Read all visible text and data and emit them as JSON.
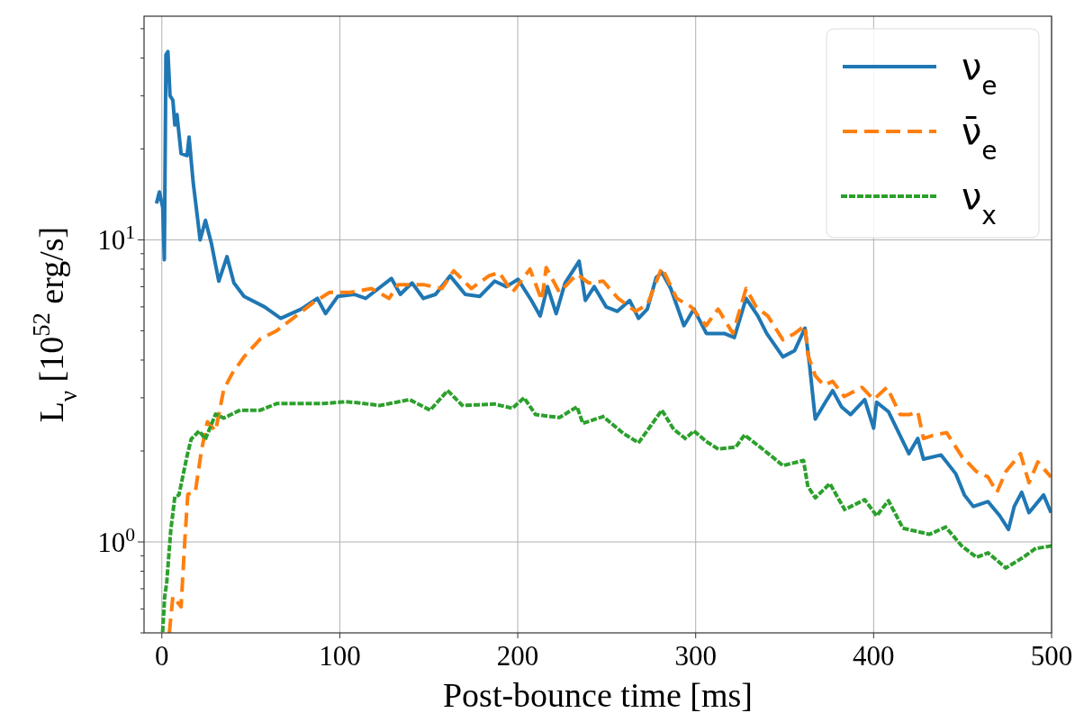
{
  "chart_data": {
    "type": "line",
    "xlabel": "Post-bounce time [ms]",
    "ylabel": "L$_{ν}$ [10$^{52}$ erg/s]",
    "xlim": [
      -10,
      500
    ],
    "ylim": [
      0.5,
      55
    ],
    "log": "y",
    "grid": true,
    "legend": "top right",
    "xticks": [
      0,
      100,
      200,
      300,
      400,
      500
    ],
    "yticks": [
      {
        "value": 0.5,
        "label": null
      },
      {
        "value": 0.6,
        "label": null
      },
      {
        "value": 0.7,
        "label": null
      },
      {
        "value": 0.8,
        "label": null
      },
      {
        "value": 0.9,
        "label": null
      },
      {
        "value": 1,
        "label": "10$^{0}$"
      },
      {
        "value": 2,
        "label": null
      },
      {
        "value": 3,
        "label": null
      },
      {
        "value": 4,
        "label": null
      },
      {
        "value": 5,
        "label": null
      },
      {
        "value": 6,
        "label": null
      },
      {
        "value": 7,
        "label": null
      },
      {
        "value": 8,
        "label": null
      },
      {
        "value": 9,
        "label": null
      },
      {
        "value": 10,
        "label": "10$^{1}$"
      },
      {
        "value": 20,
        "label": null
      },
      {
        "value": 30,
        "label": null
      },
      {
        "value": 40,
        "label": null
      },
      {
        "value": 50,
        "label": null
      }
    ],
    "series": [
      {
        "name": "ν$_{e}$",
        "color": "#1f77b4",
        "line_style": "solid",
        "x": [
          -3,
          -1.4,
          0.5,
          1.4,
          2.3,
          3.4,
          4.6,
          6.2,
          7.3,
          8.5,
          10.8,
          14.2,
          15.3,
          17.6,
          19.9,
          21.5,
          24.5,
          27.9,
          32,
          36.6,
          40.5,
          46.2,
          57.7,
          66.8,
          78.3,
          87.4,
          92,
          98.9,
          108,
          114.5,
          129,
          134,
          140.6,
          147,
          153.8,
          162,
          170.5,
          178.7,
          187,
          193.6,
          200.2,
          207.7,
          212.6,
          216.7,
          221.6,
          226.6,
          234.5,
          238,
          243,
          249.7,
          256,
          262.9,
          267.9,
          272.8,
          277.8,
          281,
          286,
          293.4,
          299,
          306,
          316,
          321.7,
          328.3,
          334.9,
          339.9,
          349,
          355.6,
          361.4,
          363.9,
          367.2,
          373.8,
          377,
          382,
          387,
          395,
          400,
          401.7,
          408.3,
          419.8,
          424.8,
          428,
          437.9,
          446.2,
          451,
          456,
          464.3,
          470.9,
          475.8,
          479,
          483.2,
          487.3,
          495.5,
          499.7
        ],
        "values": [
          13.2,
          14.4,
          12.8,
          8.6,
          41,
          42,
          30,
          29,
          24,
          26,
          19.3,
          19,
          21.9,
          15.5,
          12,
          10,
          11.6,
          9.7,
          7.3,
          8.8,
          7.2,
          6.5,
          6.0,
          5.5,
          5.9,
          6.4,
          5.7,
          6.5,
          6.6,
          6.4,
          7.45,
          6.6,
          7.2,
          6.4,
          6.6,
          7.6,
          6.6,
          6.5,
          7.3,
          7.0,
          7.4,
          6.3,
          5.6,
          7.0,
          5.7,
          7.2,
          8.5,
          6.3,
          7.0,
          6.0,
          5.8,
          6.3,
          5.5,
          5.9,
          7.5,
          7.8,
          6.9,
          5.2,
          5.9,
          4.9,
          4.9,
          4.75,
          6.4,
          5.6,
          4.9,
          4.1,
          4.3,
          5.1,
          3.9,
          2.55,
          2.96,
          3.17,
          2.8,
          2.64,
          2.96,
          2.38,
          2.9,
          2.7,
          1.96,
          2.2,
          1.88,
          1.94,
          1.68,
          1.43,
          1.31,
          1.36,
          1.22,
          1.1,
          1.31,
          1.46,
          1.25,
          1.43,
          1.25
        ]
      },
      {
        "name": "ν̄$_{e}$",
        "color": "#ff7f0e",
        "line_style": "dashed",
        "x": [
          4.2,
          6.2,
          10.8,
          13,
          14.6,
          18.8,
          22.2,
          25.6,
          30.2,
          34.8,
          39.4,
          46.2,
          55.4,
          64.5,
          73.7,
          85.1,
          94.3,
          105.7,
          117.8,
          127.7,
          132.7,
          147.5,
          157.4,
          164,
          173.9,
          183.8,
          189.6,
          197,
          206.9,
          213.5,
          216,
          223.4,
          233.3,
          239.9,
          248,
          256.4,
          266.2,
          272.8,
          281,
          289.3,
          297.5,
          305.8,
          312.6,
          320.9,
          328.3,
          334,
          340.5,
          349,
          355.6,
          361.4,
          363,
          367.2,
          372,
          377,
          383.5,
          393.4,
          400,
          407.5,
          414.9,
          420,
          424.8,
          428,
          433,
          441,
          449.5,
          457.8,
          464.3,
          469.3,
          474.3,
          482.5,
          487.3,
          492.3,
          499.7
        ],
        "values": [
          0.5,
          0.66,
          0.61,
          1.03,
          1.44,
          1.46,
          2.0,
          2.5,
          2.33,
          3.2,
          3.6,
          4.1,
          4.7,
          5.0,
          5.5,
          6.2,
          6.7,
          6.7,
          6.9,
          6.4,
          7.1,
          7.1,
          6.9,
          7.9,
          6.9,
          7.6,
          7.8,
          6.7,
          8.0,
          6.3,
          8.1,
          6.7,
          7.7,
          7.2,
          7.3,
          6.4,
          5.8,
          6.1,
          8.1,
          6.4,
          6.0,
          5.2,
          5.9,
          4.9,
          6.9,
          6.0,
          5.6,
          4.67,
          4.9,
          5.2,
          4.17,
          3.55,
          3.3,
          3.4,
          3.03,
          3.25,
          2.96,
          3.25,
          2.64,
          2.64,
          2.7,
          2.2,
          2.25,
          2.3,
          1.92,
          1.71,
          1.64,
          1.46,
          1.71,
          1.96,
          1.57,
          1.84,
          1.64
        ]
      },
      {
        "name": "ν$_{x}$",
        "color": "#2ca02c",
        "line_style": "dotted",
        "x": [
          0.5,
          1.6,
          2.7,
          5,
          7.3,
          9.6,
          14.2,
          16.5,
          21,
          24.5,
          30.2,
          34.8,
          43.9,
          55.4,
          64.5,
          76,
          89.7,
          103.4,
          109.5,
          122.7,
          139.2,
          150.8,
          160.6,
          168.9,
          187,
          197,
          203.6,
          210,
          223.4,
          233.3,
          236.6,
          248,
          259.7,
          267.9,
          281,
          287.6,
          294.2,
          299,
          306,
          312.6,
          322.5,
          327.4,
          339,
          349,
          360.6,
          363,
          367.2,
          375.4,
          383.7,
          395,
          401.7,
          408.3,
          416.5,
          431.4,
          440.5,
          449.5,
          457.8,
          464.3,
          474.3,
          484.2,
          490.8,
          499.7
        ],
        "values": [
          0.51,
          0.66,
          0.73,
          1.09,
          1.41,
          1.43,
          1.93,
          2.19,
          2.33,
          2.19,
          2.65,
          2.57,
          2.73,
          2.73,
          2.87,
          2.87,
          2.87,
          2.91,
          2.89,
          2.83,
          2.96,
          2.73,
          3.17,
          2.83,
          2.86,
          2.77,
          3.0,
          2.64,
          2.58,
          2.8,
          2.47,
          2.6,
          2.28,
          2.13,
          2.73,
          2.36,
          2.2,
          2.33,
          2.15,
          2.03,
          2.06,
          2.26,
          2.0,
          1.79,
          1.86,
          1.53,
          1.4,
          1.56,
          1.28,
          1.38,
          1.22,
          1.37,
          1.11,
          1.06,
          1.12,
          0.97,
          0.89,
          0.92,
          0.82,
          0.89,
          0.95,
          0.97
        ]
      }
    ]
  }
}
